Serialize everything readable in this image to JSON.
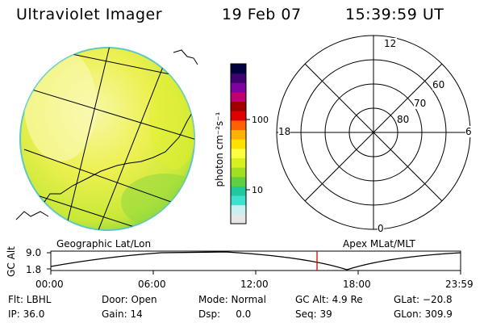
{
  "header": {
    "instrument": "Ultraviolet Imager",
    "date": "19 Feb 07",
    "time": "15:39:59 UT"
  },
  "colorbar": {
    "unit_label": "photon cm⁻²s⁻¹",
    "tick_high": "100",
    "tick_low": "10",
    "colors": [
      "#e6e6e6",
      "#c8f0f0",
      "#40e0d0",
      "#20c8a0",
      "#60d040",
      "#a0e020",
      "#d8f020",
      "#ffff40",
      "#ffe000",
      "#ffb000",
      "#ff6000",
      "#e00000",
      "#a00000",
      "#c00070",
      "#8000a0",
      "#400070",
      "#000040"
    ]
  },
  "panels": {
    "left_caption": "Geographic Lat/Lon",
    "right_caption": "Apex MLat/MLT"
  },
  "polar_plot": {
    "top_label": "12",
    "bottom_label": "0",
    "left_label": "18",
    "right_label": "6",
    "ring_labels": [
      "60",
      "70",
      "80"
    ]
  },
  "orbit_plot": {
    "y_axis_label": "GC Alt",
    "y_top": "9.0",
    "y_bottom": "1.8",
    "x_ticks": [
      "00:00",
      "06:00",
      "12:00",
      "18:00",
      "23:59"
    ],
    "marker_time": "15:40"
  },
  "status": {
    "flt": "Flt: LBHL",
    "ip": "IP: 36.0",
    "door": "Door: Open",
    "gain": "Gain: 14",
    "mode": "Mode: Normal",
    "dsp": "Dsp:     0.0",
    "gcalt": "GC Alt: 4.9 Re",
    "seq": "Seq: 39",
    "glat": "GLat: −20.8",
    "glon": "GLon: 309.9"
  },
  "colors": {
    "earth_disk_main": "#e8f040",
    "earth_disk_bright": "#f8f8a0",
    "earth_disk_limb": "#70d040",
    "marker": "#e00000"
  }
}
